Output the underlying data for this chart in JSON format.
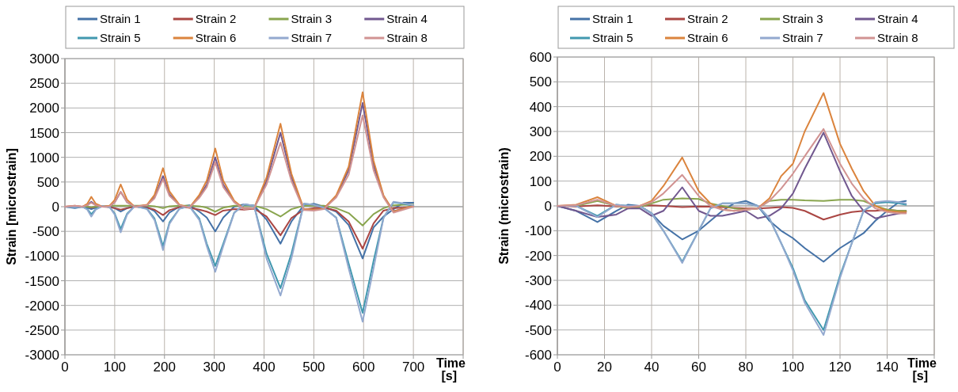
{
  "chart_data": [
    {
      "type": "line",
      "ylabel": "Strain [microstrain]",
      "xlabel": "Time [s]",
      "xlim": [
        0,
        800
      ],
      "ylim": [
        -3000,
        3000
      ],
      "xticks": [
        0,
        100,
        200,
        300,
        400,
        500,
        600,
        700,
        {
          "value": 800,
          "label": null
        }
      ],
      "yticks": [
        -3000,
        -2500,
        -2000,
        -1500,
        -1000,
        -500,
        0,
        500,
        1000,
        1500,
        2000,
        2500,
        3000
      ],
      "grid": true,
      "legend": "top",
      "marker": "none",
      "line_style": "solid",
      "x": [
        0,
        20,
        35,
        45,
        53,
        62,
        75,
        90,
        100,
        112,
        125,
        140,
        165,
        180,
        197,
        210,
        230,
        250,
        270,
        285,
        302,
        318,
        340,
        360,
        380,
        405,
        433,
        455,
        480,
        500,
        520,
        545,
        570,
        598,
        620,
        640,
        660,
        680,
        700
      ],
      "series": [
        {
          "name": "Strain 1",
          "color": "#4572a7",
          "values": [
            0,
            -30,
            0,
            -20,
            -50,
            -20,
            10,
            0,
            -30,
            -100,
            -30,
            10,
            -10,
            -90,
            -300,
            -120,
            0,
            30,
            -100,
            -220,
            -500,
            -220,
            0,
            50,
            20,
            -260,
            -750,
            -300,
            30,
            60,
            0,
            -100,
            -370,
            -1050,
            -420,
            -200,
            -50,
            80,
            80
          ]
        },
        {
          "name": "Strain 2",
          "color": "#aa4643",
          "values": [
            0,
            0,
            0,
            0,
            -20,
            0,
            0,
            -10,
            -30,
            -60,
            -30,
            0,
            -20,
            -60,
            -170,
            -70,
            -10,
            -20,
            -60,
            -100,
            -170,
            -80,
            -50,
            -60,
            -40,
            -200,
            -580,
            -230,
            -60,
            -30,
            -20,
            -80,
            -300,
            -850,
            -340,
            -80,
            -30,
            -20,
            0
          ]
        },
        {
          "name": "Strain 3",
          "color": "#89a54e",
          "values": [
            0,
            0,
            0,
            0,
            -10,
            0,
            0,
            20,
            20,
            20,
            20,
            20,
            20,
            10,
            -30,
            10,
            20,
            20,
            10,
            -20,
            -100,
            -20,
            20,
            20,
            20,
            -50,
            -200,
            -50,
            20,
            20,
            20,
            -30,
            -130,
            -380,
            -150,
            -30,
            30,
            40,
            40
          ]
        },
        {
          "name": "Strain 4",
          "color": "#71588f",
          "values": [
            0,
            10,
            0,
            30,
            100,
            30,
            0,
            10,
            90,
            300,
            90,
            0,
            30,
            190,
            620,
            250,
            30,
            -20,
            200,
            450,
            1000,
            450,
            100,
            -40,
            -30,
            520,
            1500,
            600,
            -60,
            -60,
            -40,
            210,
            740,
            2100,
            840,
            210,
            -90,
            -40,
            10
          ]
        },
        {
          "name": "Strain 5",
          "color": "#4198af",
          "values": [
            0,
            -10,
            0,
            -50,
            -150,
            -50,
            10,
            -10,
            -140,
            -450,
            -140,
            10,
            -40,
            -240,
            -800,
            -320,
            -40,
            10,
            -240,
            -750,
            -1200,
            -750,
            -120,
            40,
            20,
            -950,
            -1650,
            -950,
            60,
            40,
            -20,
            -220,
            -1150,
            -2150,
            -1100,
            -220,
            90,
            60,
            20
          ]
        },
        {
          "name": "Strain 6",
          "color": "#db843d",
          "values": [
            0,
            20,
            0,
            60,
            200,
            60,
            0,
            20,
            140,
            450,
            140,
            0,
            40,
            240,
            780,
            310,
            40,
            -20,
            240,
            530,
            1180,
            530,
            120,
            -40,
            -30,
            590,
            1680,
            670,
            -50,
            -60,
            -40,
            230,
            810,
            2320,
            930,
            230,
            -100,
            -40,
            20
          ]
        },
        {
          "name": "Strain 7",
          "color": "#93a9cf",
          "values": [
            0,
            -10,
            0,
            -60,
            -200,
            -60,
            10,
            -10,
            -160,
            -520,
            -160,
            10,
            -50,
            -270,
            -880,
            -350,
            -40,
            10,
            -270,
            -800,
            -1320,
            -800,
            -130,
            50,
            20,
            -1050,
            -1800,
            -1050,
            60,
            40,
            -20,
            -230,
            -1250,
            -2330,
            -1250,
            -230,
            100,
            70,
            30
          ]
        },
        {
          "name": "Strain 8",
          "color": "#d19392",
          "values": [
            0,
            20,
            0,
            30,
            80,
            30,
            0,
            10,
            90,
            300,
            90,
            0,
            30,
            170,
            560,
            220,
            30,
            -20,
            180,
            400,
            900,
            400,
            90,
            -50,
            -30,
            450,
            1300,
            520,
            -70,
            -80,
            -50,
            190,
            650,
            1850,
            740,
            190,
            -120,
            -60,
            0
          ]
        }
      ]
    },
    {
      "type": "line",
      "ylabel": "Strain (microstrain)",
      "xlabel": "Time [s]",
      "xlim": [
        0,
        160
      ],
      "ylim": [
        -600,
        600
      ],
      "xticks": [
        0,
        20,
        40,
        60,
        80,
        100,
        120,
        140,
        {
          "value": 160,
          "label": null
        }
      ],
      "yticks": [
        -600,
        -500,
        -400,
        -300,
        -200,
        -100,
        0,
        100,
        200,
        300,
        400,
        500,
        600
      ],
      "grid": true,
      "legend": "top",
      "marker": "none",
      "line_style": "solid",
      "x": [
        0,
        8,
        17,
        25,
        30,
        35,
        40,
        45,
        53,
        60,
        65,
        70,
        75,
        80,
        85,
        90,
        95,
        100,
        105,
        113,
        120,
        125,
        130,
        135,
        140,
        145,
        148
      ],
      "series": [
        {
          "name": "Strain 1",
          "color": "#4572a7",
          "values": [
            0,
            -20,
            -65,
            -20,
            5,
            0,
            -30,
            -80,
            -135,
            -100,
            -60,
            -20,
            10,
            20,
            0,
            -60,
            -100,
            -130,
            -170,
            -225,
            -170,
            -140,
            -110,
            -60,
            -20,
            15,
            20
          ]
        },
        {
          "name": "Strain 2",
          "color": "#aa4643",
          "values": [
            0,
            -2,
            2,
            -2,
            -5,
            0,
            2,
            0,
            -5,
            -2,
            -3,
            -5,
            -8,
            -10,
            -10,
            -8,
            -5,
            -8,
            -20,
            -55,
            -35,
            -25,
            -20,
            -20,
            -15,
            -20,
            -20
          ]
        },
        {
          "name": "Strain 3",
          "color": "#89a54e",
          "values": [
            0,
            0,
            20,
            0,
            -10,
            -5,
            10,
            25,
            30,
            28,
            10,
            0,
            -10,
            -15,
            -10,
            20,
            25,
            25,
            22,
            20,
            25,
            25,
            20,
            0,
            -15,
            -20,
            -20
          ]
        },
        {
          "name": "Strain 4",
          "color": "#71588f",
          "values": [
            0,
            -20,
            -45,
            -35,
            -10,
            -10,
            -40,
            -20,
            75,
            -20,
            -40,
            -40,
            -30,
            -20,
            -50,
            -40,
            -10,
            50,
            150,
            295,
            140,
            40,
            -20,
            -50,
            -40,
            -30,
            -25
          ]
        },
        {
          "name": "Strain 5",
          "color": "#4198af",
          "values": [
            0,
            0,
            -40,
            5,
            0,
            0,
            -30,
            -100,
            -225,
            -100,
            -10,
            10,
            10,
            10,
            0,
            -50,
            -150,
            -250,
            -380,
            -500,
            -280,
            -150,
            -20,
            10,
            15,
            10,
            5
          ]
        },
        {
          "name": "Strain 6",
          "color": "#db843d",
          "values": [
            0,
            5,
            35,
            0,
            -5,
            0,
            20,
            80,
            195,
            60,
            10,
            -15,
            -20,
            -15,
            -10,
            30,
            120,
            170,
            300,
            455,
            250,
            150,
            60,
            0,
            -20,
            -25,
            -25
          ]
        },
        {
          "name": "Strain 7",
          "color": "#93a9cf",
          "values": [
            0,
            0,
            -45,
            5,
            0,
            0,
            -30,
            -100,
            -230,
            -100,
            -10,
            10,
            10,
            10,
            0,
            -50,
            -150,
            -260,
            -390,
            -520,
            -290,
            -150,
            -20,
            15,
            20,
            15,
            10
          ]
        },
        {
          "name": "Strain 8",
          "color": "#d19392",
          "values": [
            0,
            3,
            25,
            0,
            -5,
            0,
            15,
            50,
            125,
            40,
            0,
            -15,
            -20,
            -15,
            -10,
            20,
            70,
            130,
            200,
            310,
            170,
            90,
            30,
            -10,
            -25,
            -30,
            -30
          ]
        }
      ]
    }
  ]
}
